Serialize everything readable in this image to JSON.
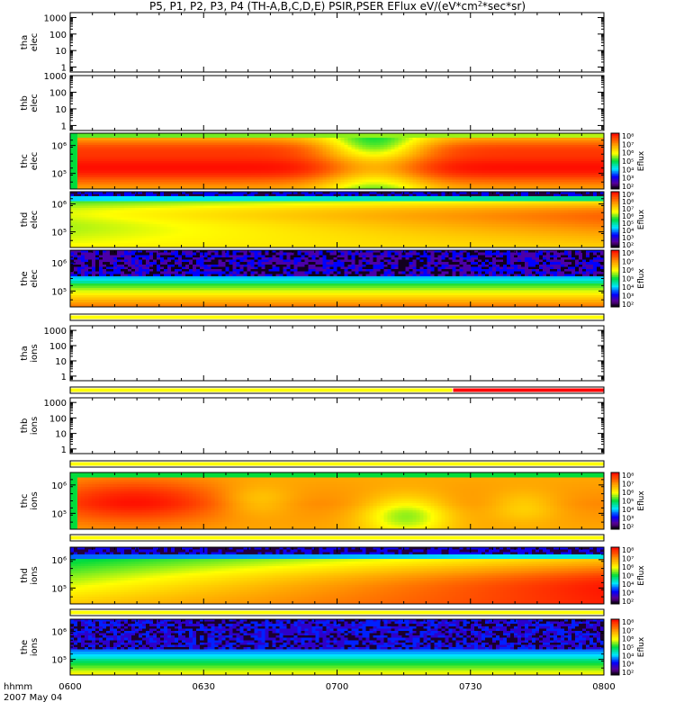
{
  "chart_data": {
    "type": "heatmap",
    "title": "P5, P1, P2, P3, P4 (TH-A,B,C,D,E) PSIR,PSER EFlux eV/(eV*cm²*sec*sr)",
    "x_axis": {
      "label": "hhmm",
      "date": "2007 May 04",
      "range": [
        "0600",
        "0800"
      ],
      "ticks": [
        "0600",
        "0630",
        "0700",
        "0730",
        "0800"
      ]
    },
    "colorbar": {
      "label": "Eflux",
      "scale": "log"
    },
    "panels": [
      {
        "id": "tha_elec",
        "label": [
          "tha",
          "elec"
        ],
        "kind": "empty",
        "yscale": "log",
        "ylim": [
          0.5,
          2000
        ],
        "yticks": [
          "1",
          "10",
          "100",
          "1000"
        ]
      },
      {
        "id": "thb_elec",
        "label": [
          "thb",
          "elec"
        ],
        "kind": "empty",
        "yscale": "log",
        "ylim": [
          0.5,
          1000
        ],
        "yticks": [
          "1",
          "10",
          "100",
          "1000"
        ]
      },
      {
        "id": "thc_elec",
        "label": [
          "thc",
          "elec"
        ],
        "kind": "spectrogram",
        "pattern": "thc_elec",
        "yscale": "log",
        "yticks": [
          "10⁵",
          "10⁶"
        ],
        "colorbar_range": [
          2,
          8
        ],
        "colorbar_ticks": [
          "10⁸",
          "10⁷",
          "10⁶",
          "10⁵",
          "10⁴",
          "10³",
          "10²"
        ]
      },
      {
        "id": "thd_elec",
        "label": [
          "thd",
          "elec"
        ],
        "kind": "spectrogram",
        "pattern": "thd_elec",
        "yscale": "log",
        "yticks": [
          "10⁵",
          "10⁶"
        ],
        "colorbar_range": [
          2,
          9
        ],
        "colorbar_ticks": [
          "10⁹",
          "10⁸",
          "10⁷",
          "10⁶",
          "10⁵",
          "10⁴",
          "10³",
          "10²"
        ]
      },
      {
        "id": "the_elec",
        "label": [
          "the",
          "elec"
        ],
        "kind": "spectrogram",
        "pattern": "the_elec",
        "yscale": "log",
        "yticks": [
          "10⁵",
          "10⁶"
        ],
        "colorbar_range": [
          2,
          8
        ],
        "colorbar_ticks": [
          "10⁸",
          "10⁷",
          "10⁶",
          "10⁵",
          "10⁴",
          "10³",
          "10²"
        ]
      },
      {
        "id": "tha_ions",
        "label": [
          "tha",
          "ions"
        ],
        "kind": "empty",
        "yscale": "log",
        "ylim": [
          0.5,
          2000
        ],
        "yticks": [
          "1",
          "10",
          "100",
          "1000"
        ]
      },
      {
        "id": "thb_ions",
        "label": [
          "thb",
          "ions"
        ],
        "kind": "empty",
        "yscale": "log",
        "ylim": [
          0.5,
          2000
        ],
        "yticks": [
          "1",
          "10",
          "100",
          "1000"
        ]
      },
      {
        "id": "thc_ions",
        "label": [
          "thc",
          "ions"
        ],
        "kind": "spectrogram",
        "pattern": "thc_ions",
        "yscale": "log",
        "yticks": [
          "10⁵",
          "10⁶"
        ],
        "colorbar_range": [
          2,
          8
        ],
        "colorbar_ticks": [
          "10⁸",
          "10⁷",
          "10⁶",
          "10⁵",
          "10⁴",
          "10³",
          "10²"
        ]
      },
      {
        "id": "thd_ions",
        "label": [
          "thd",
          "ions"
        ],
        "kind": "spectrogram",
        "pattern": "thd_ions",
        "yscale": "log",
        "yticks": [
          "10⁵",
          "10⁶"
        ],
        "colorbar_range": [
          2,
          8
        ],
        "colorbar_ticks": [
          "10⁸",
          "10⁷",
          "10⁶",
          "10⁵",
          "10⁴",
          "10³",
          "10²"
        ]
      },
      {
        "id": "the_ions",
        "label": [
          "the",
          "ions"
        ],
        "kind": "spectrogram",
        "pattern": "the_ions",
        "yscale": "log",
        "yticks": [
          "10⁵",
          "10⁶"
        ],
        "colorbar_range": [
          2,
          8
        ],
        "colorbar_ticks": [
          "10⁸",
          "10⁷",
          "10⁶",
          "10⁵",
          "10⁴",
          "10³",
          "10²"
        ]
      }
    ],
    "mode_bars": [
      {
        "after_panel": "the_elec",
        "segments": [
          {
            "from": "0600",
            "to": "0800",
            "color": "#ffff00"
          }
        ]
      },
      {
        "after_panel": "tha_ions",
        "segments": [
          {
            "from": "0600",
            "to": "0726",
            "color": "#ffff00"
          },
          {
            "from": "0726",
            "to": "0800",
            "color": "#ff0000"
          }
        ]
      },
      {
        "after_panel": "thb_ions",
        "segments": [
          {
            "from": "0600",
            "to": "0800",
            "color": "#ffff00"
          }
        ]
      },
      {
        "after_panel": "thc_ions",
        "segments": [
          {
            "from": "0600",
            "to": "0800",
            "color": "#ffff00"
          }
        ]
      },
      {
        "after_panel": "thd_ions",
        "segments": [
          {
            "from": "0600",
            "to": "0800",
            "color": "#ffff00"
          }
        ]
      }
    ]
  }
}
